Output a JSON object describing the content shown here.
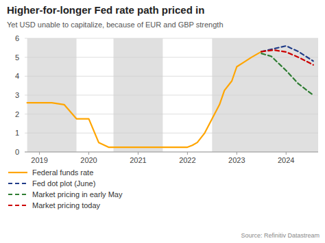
{
  "chart_data": {
    "type": "line",
    "title": "Higher-for-longer Fed rate path priced in",
    "subtitle": "Yet USD unable to capitalize, because of EUR and GBP strength",
    "source": "Source: Refinitiv Datastream",
    "xlim": [
      2018.7,
      2024.65
    ],
    "ylim": [
      0,
      6
    ],
    "xticks": [
      2019,
      2020,
      2021,
      2022,
      2023,
      2024
    ],
    "yticks": [
      0,
      1,
      2,
      3,
      4,
      5,
      6
    ],
    "grid": true,
    "legend": "bottom",
    "shaded_regions": [
      {
        "start": 2018.75,
        "end": 2019.75,
        "color": "#e0e0e0"
      },
      {
        "start": 2020.5,
        "end": 2021.5,
        "color": "#e0e0e0"
      },
      {
        "start": 2022.5,
        "end": 2024.65,
        "color": "#e0e0e0"
      }
    ],
    "series": [
      {
        "name": "Federal funds rate",
        "color": "#FFA500",
        "line_style": "solid",
        "x": [
          2018.75,
          2019.0,
          2019.25,
          2019.5,
          2019.75,
          2020.0,
          2020.2,
          2020.4,
          2020.6,
          2020.75,
          2021.0,
          2021.25,
          2021.5,
          2021.75,
          2022.0,
          2022.1,
          2022.2,
          2022.35,
          2022.5,
          2022.65,
          2022.75,
          2022.9,
          2023.0,
          2023.15,
          2023.3,
          2023.5
        ],
        "values": [
          2.6,
          2.6,
          2.6,
          2.5,
          1.75,
          1.75,
          0.5,
          0.25,
          0.25,
          0.25,
          0.25,
          0.25,
          0.25,
          0.25,
          0.25,
          0.35,
          0.5,
          1.0,
          1.75,
          2.5,
          3.25,
          3.75,
          4.5,
          4.75,
          5.0,
          5.3
        ]
      },
      {
        "name": "Fed dot plot (June)",
        "color": "#1f3c88",
        "line_style": "dashed",
        "x": [
          2023.5,
          2023.75,
          2024.0,
          2024.25,
          2024.55
        ],
        "values": [
          5.3,
          5.45,
          5.6,
          5.3,
          4.8
        ]
      },
      {
        "name": "Market pricing in early May",
        "color": "#2e7d32",
        "line_style": "dashed",
        "x": [
          2023.5,
          2023.7,
          2024.0,
          2024.25,
          2024.55
        ],
        "values": [
          5.2,
          5.05,
          4.3,
          3.6,
          3.0
        ]
      },
      {
        "name": "Market pricing today",
        "color": "#cc0000",
        "line_style": "dashed",
        "x": [
          2023.5,
          2023.75,
          2024.0,
          2024.25,
          2024.55
        ],
        "values": [
          5.3,
          5.38,
          5.28,
          5.0,
          4.6
        ]
      }
    ]
  }
}
